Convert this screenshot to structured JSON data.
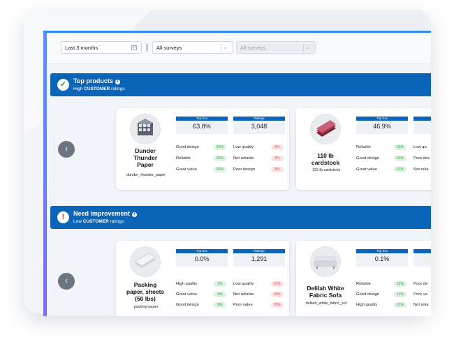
{
  "filters": {
    "date_range": "Last 3 months",
    "survey_1": "All surveys",
    "survey_2": "All surveys"
  },
  "sections": [
    {
      "title": "Top products",
      "subtitle_pre": "High",
      "subtitle_bold": "CUSTOMER",
      "subtitle_post": "ratings",
      "status_icon": "check-icon",
      "products": [
        {
          "name_lines": [
            "Dunder",
            "Thunder",
            "Paper"
          ],
          "sku": "dunder_thunder_paper",
          "image": "paper-box-icon",
          "top_box_label": "Top box",
          "top_box": "63.8%",
          "ratings_label": "Ratings",
          "ratings": "3,048",
          "good": [
            [
              "Good design",
              "66%"
            ],
            [
              "Reliable",
              "65%"
            ],
            [
              "Great value",
              "65%"
            ]
          ],
          "bad": [
            [
              "Low quality",
              "8%"
            ],
            [
              "Not reliable",
              "8%"
            ],
            [
              "Poor design",
              "8%"
            ]
          ]
        },
        {
          "name_lines": [
            "110 lb",
            "cardstock"
          ],
          "sku": "110-lb-cardstock",
          "image": "cardstock-icon",
          "top_box_label": "Top box",
          "top_box": "46.9%",
          "good": [
            [
              "Reliable",
              "61%"
            ],
            [
              "Good design",
              "61%"
            ],
            [
              "Great value",
              "61%"
            ]
          ],
          "bad": [
            [
              "Low qu",
              ""
            ],
            [
              "Poor des",
              ""
            ],
            [
              "Not relia",
              ""
            ]
          ]
        }
      ]
    },
    {
      "title": "Need improvement",
      "subtitle_pre": "Low",
      "subtitle_bold": "CUSTOMER",
      "subtitle_post": "ratings",
      "status_icon": "exclamation-icon",
      "products": [
        {
          "name_lines": [
            "Packing",
            "paper, sheets",
            "(50 lbs)"
          ],
          "sku": "packing-paper",
          "image": "packing-paper-icon",
          "top_box_label": "Top box",
          "top_box": "0.0%",
          "ratings_label": "Ratings",
          "ratings": "1,291",
          "good": [
            [
              "High quality",
              "9%"
            ],
            [
              "Great value",
              "9%"
            ],
            [
              "Good design",
              "8%"
            ]
          ],
          "bad": [
            [
              "Low quality",
              "67%"
            ],
            [
              "Not reliable",
              "66%"
            ],
            [
              "Poor value",
              "65%"
            ]
          ]
        },
        {
          "name_lines": [
            "Delilah White",
            "Fabric Sofa"
          ],
          "sku": "delilah_white_fabric_sof",
          "image": "sofa-icon",
          "top_box_label": "Top box",
          "top_box": "0.1%",
          "good": [
            [
              "Reliable",
              "12%"
            ],
            [
              "Good design",
              "12%"
            ],
            [
              "High quality",
              "11%"
            ]
          ],
          "bad": [
            [
              "Poor de",
              ""
            ],
            [
              "Poor va",
              ""
            ],
            [
              "Not relia",
              ""
            ]
          ]
        }
      ]
    }
  ],
  "colors": {
    "accent": "#0a64b8",
    "good": "#3a9a4b",
    "bad": "#d45353"
  }
}
